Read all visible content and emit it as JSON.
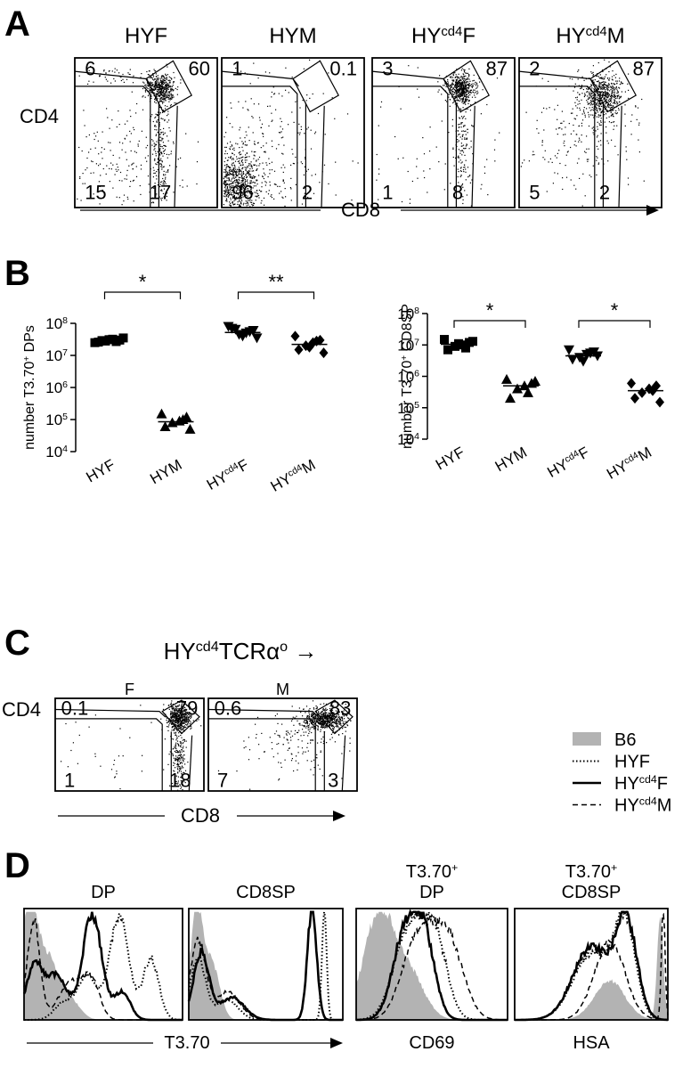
{
  "panels": {
    "A": {
      "letter": "A",
      "y_label": "CD4",
      "x_label": "CD8",
      "plots": [
        {
          "title": [
            "HYF"
          ],
          "quadrants": {
            "cd4": 6,
            "dp": 60,
            "dn": 15,
            "cd8": 17
          }
        },
        {
          "title": [
            "HYM"
          ],
          "quadrants": {
            "cd4": 1,
            "dp": 0.1,
            "dn": 96,
            "cd8": 2
          }
        },
        {
          "title": [
            "HY",
            "cd4",
            "F"
          ],
          "quadrants": {
            "cd4": 3,
            "dp": 87,
            "dn": 1,
            "cd8": 8
          }
        },
        {
          "title": [
            "HY",
            "cd4",
            "M"
          ],
          "quadrants": {
            "cd4": 2,
            "dp": 87,
            "dn": 5,
            "cd8": 2
          }
        }
      ]
    },
    "B": {
      "letter": "B"
    },
    "C": {
      "letter": "C",
      "title": [
        "HY",
        "cd4",
        "TCRα",
        "o",
        " →"
      ],
      "y_label": "CD4",
      "x_label": "CD8",
      "plots": [
        {
          "title": [
            "F"
          ],
          "quadrants": {
            "cd4": 0.1,
            "dp": 79,
            "dn": 1,
            "cd8": 18
          }
        },
        {
          "title": [
            "M"
          ],
          "quadrants": {
            "cd4": 0.6,
            "dp": 83,
            "dn": 7,
            "cd8": 3
          }
        }
      ]
    },
    "legend": {
      "entries": [
        {
          "label": [
            "B6"
          ],
          "style": "fill",
          "color": "#b3b3b3"
        },
        {
          "label": [
            "HYF"
          ],
          "style": "dotted",
          "color": "#000000"
        },
        {
          "label": [
            "HY",
            "cd4",
            "F"
          ],
          "style": "solid",
          "color": "#000000"
        },
        {
          "label": [
            "HY",
            "cd4",
            "M"
          ],
          "style": "dashed",
          "color": "#000000"
        }
      ]
    },
    "D": {
      "letter": "D",
      "x_label": [
        "T3.70"
      ],
      "plots": [
        {
          "title": [
            [
              "DP"
            ]
          ]
        },
        {
          "title": [
            [
              "CD8SP"
            ]
          ]
        },
        {
          "title": [
            [
              "T3.70",
              "+"
            ],
            [
              "DP"
            ]
          ],
          "x_label": [
            "CD69"
          ]
        },
        {
          "title": [
            [
              "T3.70",
              "+"
            ],
            [
              "CD8SP"
            ]
          ],
          "x_label": [
            "HSA"
          ]
        }
      ]
    }
  },
  "chart_data": [
    {
      "type": "dotplot",
      "y_label": [
        "number T3.70",
        "+",
        " DPs"
      ],
      "categories": [
        [
          "HYF"
        ],
        [
          "HYM"
        ],
        [
          "HY",
          "cd4",
          "F"
        ],
        [
          "HY",
          "cd4",
          "M"
        ]
      ],
      "points": [
        [
          25000000,
          30000000,
          32000000,
          28000000,
          26000000,
          35000000,
          27000000,
          31000000,
          29000000
        ],
        [
          150000,
          120000,
          90000,
          80000,
          60000,
          50000,
          100000
        ],
        [
          80000000,
          60000000,
          50000000,
          45000000,
          70000000,
          35000000,
          55000000,
          40000000,
          65000000
        ],
        [
          40000000,
          30000000,
          25000000,
          20000000,
          15000000,
          12000000,
          28000000,
          18000000
        ]
      ],
      "values": [
        29000000,
        85000,
        52000000,
        22000000
      ],
      "markers": [
        "square",
        "triangle",
        "triangle-down",
        "diamond"
      ],
      "color": "#000000",
      "log_y": true,
      "ylim": [
        10000,
        100000000
      ],
      "yticks": [
        {
          "value": 10000,
          "label": [
            "10",
            "4"
          ]
        },
        {
          "value": 100000,
          "label": [
            "10",
            "5"
          ]
        },
        {
          "value": 1000000,
          "label": [
            "10",
            "6"
          ]
        },
        {
          "value": 10000000,
          "label": [
            "10",
            "7"
          ]
        },
        {
          "value": 100000000,
          "label": [
            "10",
            "8"
          ]
        }
      ],
      "brackets": [
        {
          "between": [
            0,
            1
          ],
          "label": "*"
        },
        {
          "between": [
            2,
            3
          ],
          "label": "**"
        }
      ]
    },
    {
      "type": "dotplot",
      "y_label": [
        "number T3.70",
        "+",
        " CD8SP"
      ],
      "categories": [
        [
          "HYF"
        ],
        [
          "HYM"
        ],
        [
          "HY",
          "cd4",
          "F"
        ],
        [
          "HY",
          "cd4",
          "M"
        ]
      ],
      "points": [
        [
          15000000,
          12000000,
          10000000,
          9000000,
          7000000,
          13000000,
          8000000,
          11000000
        ],
        [
          800000,
          600000,
          500000,
          400000,
          200000,
          700000,
          300000
        ],
        [
          7000000,
          6000000,
          5000000,
          4000000,
          3500000,
          4500000,
          5500000,
          3000000
        ],
        [
          600000,
          500000,
          400000,
          300000,
          200000,
          150000,
          350000
        ]
      ],
      "values": [
        10500000,
        500000,
        4500000,
        350000
      ],
      "markers": [
        "square",
        "triangle",
        "triangle-down",
        "diamond"
      ],
      "color": "#000000",
      "log_y": true,
      "ylim": [
        10000,
        100000000
      ],
      "yticks": [
        {
          "value": 10000,
          "label": [
            "10",
            "4"
          ]
        },
        {
          "value": 100000,
          "label": [
            "10",
            "5"
          ]
        },
        {
          "value": 1000000,
          "label": [
            "10",
            "6"
          ]
        },
        {
          "value": 10000000,
          "label": [
            "10",
            "7"
          ]
        },
        {
          "value": 100000000,
          "label": [
            "10",
            "8"
          ]
        }
      ],
      "brackets": [
        {
          "between": [
            0,
            1
          ],
          "label": "*"
        },
        {
          "between": [
            2,
            3
          ],
          "label": "*"
        }
      ]
    }
  ]
}
